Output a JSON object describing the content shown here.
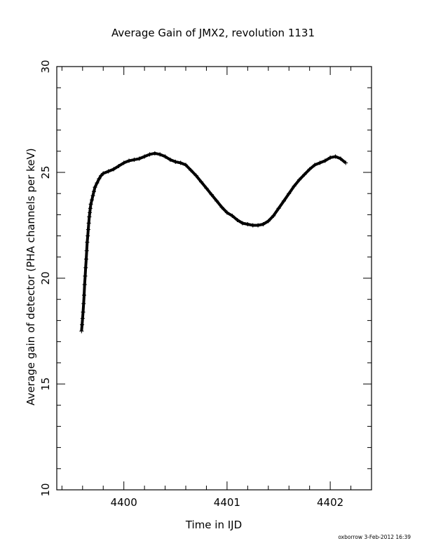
{
  "chart_data": {
    "type": "scatter",
    "title": "Average Gain of JMX2, revolution 1131",
    "xlabel": "Time in IJD",
    "ylabel": "Average gain of detector (PHA channels per keV)",
    "xlim": [
      4399.35,
      4402.4
    ],
    "ylim": [
      10,
      30
    ],
    "x_ticks": [
      "4400",
      "4401",
      "4402"
    ],
    "y_ticks": [
      "10",
      "15",
      "20",
      "25",
      "30"
    ],
    "marker": "+",
    "grid": false,
    "footer": "oxborrow   3-Feb-2012 16:39",
    "points": [
      [
        4399.59,
        17.5
      ],
      [
        4399.595,
        17.8
      ],
      [
        4399.6,
        18.1
      ],
      [
        4399.605,
        18.4
      ],
      [
        4399.61,
        18.8
      ],
      [
        4399.615,
        19.2
      ],
      [
        4399.62,
        19.7
      ],
      [
        4399.625,
        20.1
      ],
      [
        4399.63,
        20.5
      ],
      [
        4399.635,
        20.9
      ],
      [
        4399.64,
        21.3
      ],
      [
        4399.645,
        21.7
      ],
      [
        4399.65,
        22.0
      ],
      [
        4399.655,
        22.3
      ],
      [
        4399.66,
        22.6
      ],
      [
        4399.665,
        22.9
      ],
      [
        4399.67,
        23.1
      ],
      [
        4399.675,
        23.3
      ],
      [
        4399.68,
        23.5
      ],
      [
        4399.69,
        23.7
      ],
      [
        4399.7,
        23.9
      ],
      [
        4399.71,
        24.1
      ],
      [
        4399.72,
        24.3
      ],
      [
        4399.74,
        24.5
      ],
      [
        4399.76,
        24.7
      ],
      [
        4399.78,
        24.85
      ],
      [
        4399.8,
        24.95
      ],
      [
        4399.85,
        25.05
      ],
      [
        4399.9,
        25.15
      ],
      [
        4399.95,
        25.3
      ],
      [
        4400.0,
        25.45
      ],
      [
        4400.05,
        25.55
      ],
      [
        4400.1,
        25.6
      ],
      [
        4400.15,
        25.65
      ],
      [
        4400.2,
        25.75
      ],
      [
        4400.25,
        25.85
      ],
      [
        4400.3,
        25.9
      ],
      [
        4400.35,
        25.85
      ],
      [
        4400.4,
        25.75
      ],
      [
        4400.45,
        25.6
      ],
      [
        4400.5,
        25.5
      ],
      [
        4400.55,
        25.45
      ],
      [
        4400.6,
        25.35
      ],
      [
        4400.65,
        25.1
      ],
      [
        4400.7,
        24.85
      ],
      [
        4400.75,
        24.55
      ],
      [
        4400.8,
        24.25
      ],
      [
        4400.85,
        23.95
      ],
      [
        4400.9,
        23.65
      ],
      [
        4400.95,
        23.35
      ],
      [
        4401.0,
        23.1
      ],
      [
        4401.05,
        22.95
      ],
      [
        4401.1,
        22.75
      ],
      [
        4401.15,
        22.6
      ],
      [
        4401.2,
        22.55
      ],
      [
        4401.25,
        22.5
      ],
      [
        4401.3,
        22.5
      ],
      [
        4401.35,
        22.55
      ],
      [
        4401.4,
        22.7
      ],
      [
        4401.45,
        22.95
      ],
      [
        4401.5,
        23.3
      ],
      [
        4401.55,
        23.65
      ],
      [
        4401.6,
        24.0
      ],
      [
        4401.65,
        24.35
      ],
      [
        4401.7,
        24.65
      ],
      [
        4401.75,
        24.9
      ],
      [
        4401.8,
        25.15
      ],
      [
        4401.85,
        25.35
      ],
      [
        4401.9,
        25.45
      ],
      [
        4401.95,
        25.55
      ],
      [
        4402.0,
        25.7
      ],
      [
        4402.05,
        25.75
      ],
      [
        4402.1,
        25.65
      ],
      [
        4402.15,
        25.45
      ]
    ]
  }
}
